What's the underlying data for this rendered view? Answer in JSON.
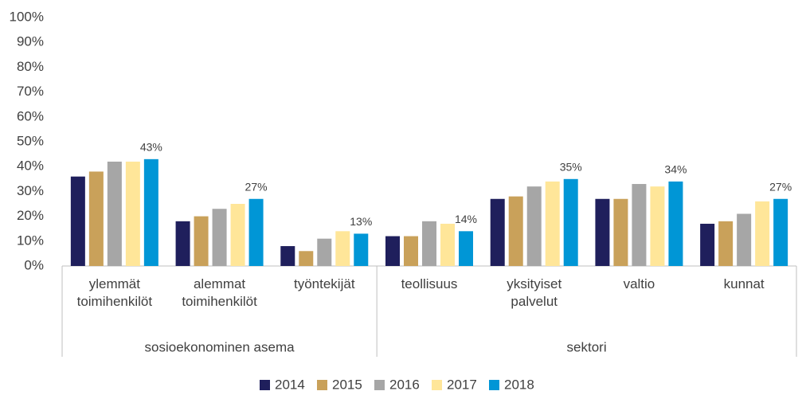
{
  "chart_data": {
    "type": "bar",
    "categories": [
      "ylemmät toimihenkilöt",
      "alemmat toimihenkilöt",
      "työntekijät",
      "teollisuus",
      "yksityiset palvelut",
      "valtio",
      "kunnat"
    ],
    "groups": [
      {
        "name": "sosioekonominen asema",
        "start": 0,
        "end": 2
      },
      {
        "name": "sektori",
        "start": 3,
        "end": 6
      }
    ],
    "series": [
      {
        "name": "2014",
        "color": "#1f1f5c",
        "values": [
          36,
          18,
          8,
          12,
          27,
          27,
          17
        ]
      },
      {
        "name": "2015",
        "color": "#c9a15a",
        "values": [
          38,
          20,
          6,
          12,
          28,
          27,
          18
        ]
      },
      {
        "name": "2016",
        "color": "#a6a6a6",
        "values": [
          42,
          23,
          11,
          18,
          32,
          33,
          21
        ]
      },
      {
        "name": "2017",
        "color": "#ffe699",
        "values": [
          42,
          25,
          14,
          17,
          34,
          32,
          26
        ]
      },
      {
        "name": "2018",
        "color": "#0096d6",
        "values": [
          43,
          27,
          13,
          14,
          35,
          34,
          27
        ],
        "value_labels": [
          "43%",
          "27%",
          "13%",
          "14%",
          "35%",
          "34%",
          "27%"
        ]
      }
    ],
    "ylim": [
      0,
      100
    ],
    "yticks": [
      {
        "value": 0,
        "label": "0%"
      },
      {
        "value": 10,
        "label": "10%"
      },
      {
        "value": 20,
        "label": "20%"
      },
      {
        "value": 30,
        "label": "30%"
      },
      {
        "value": 40,
        "label": "40%"
      },
      {
        "value": 50,
        "label": "50%"
      },
      {
        "value": 60,
        "label": "60%"
      },
      {
        "value": 70,
        "label": "70%"
      },
      {
        "value": 80,
        "label": "80%"
      },
      {
        "value": 90,
        "label": "90%"
      },
      {
        "value": 100,
        "label": "100%"
      }
    ],
    "legend": "bottom"
  }
}
